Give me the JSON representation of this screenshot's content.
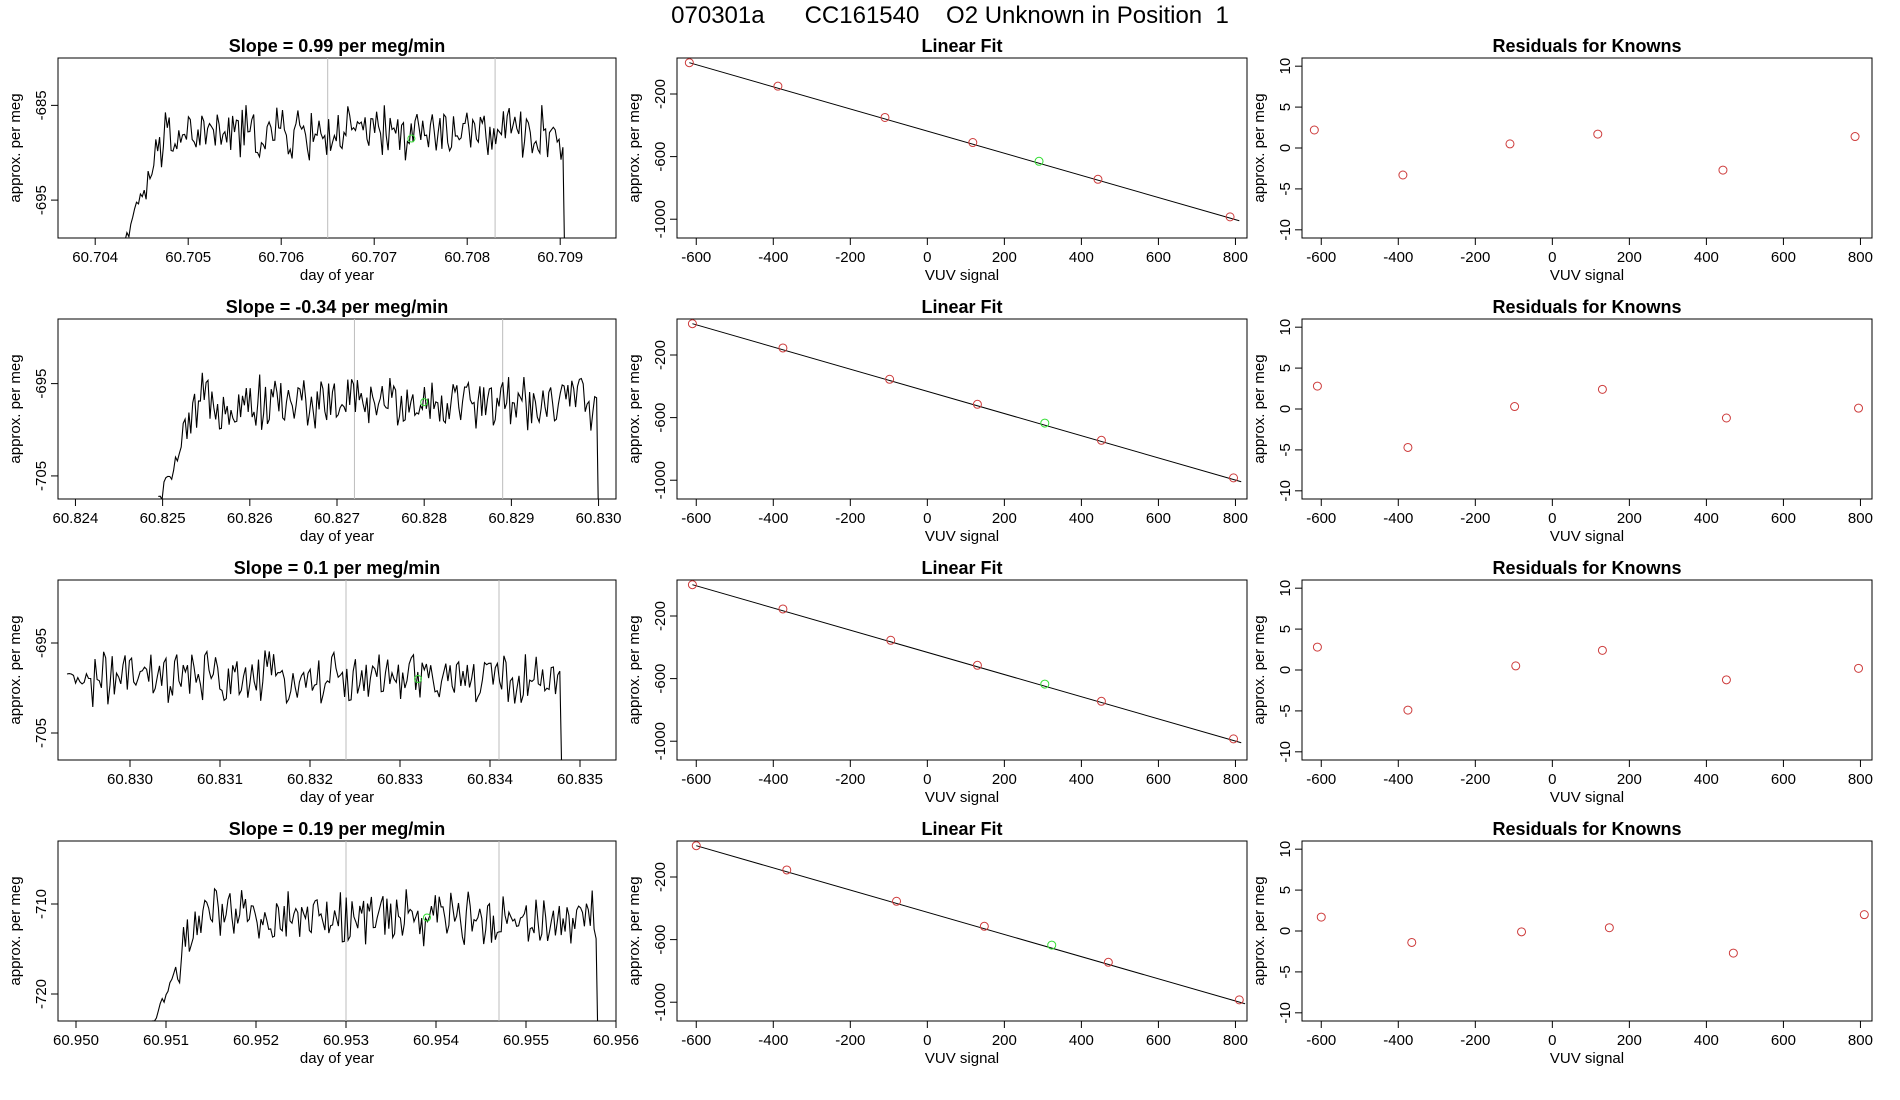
{
  "figure_title": "070301a      CC161540    O2 Unknown in Position  1",
  "colors": {
    "line": "#000000",
    "known_point": "#cd3b3b",
    "unknown_point": "#33dd33",
    "marker_line": "#bdbdbd"
  },
  "chart_data": [
    {
      "type": "line",
      "panel": "time-series",
      "row": 1,
      "title": "Slope =  0.99  per meg/min",
      "xlabel": "day of year",
      "ylabel": "approx. per meg",
      "xlim": [
        60.7036,
        60.7096
      ],
      "ylim": [
        -699,
        -680
      ],
      "xticks": [
        "60.704",
        "60.705",
        "60.706",
        "60.707",
        "60.708",
        "60.709"
      ],
      "xtick_values": [
        60.704,
        60.705,
        60.706,
        60.707,
        60.708,
        60.709
      ],
      "yticks": [
        "-685",
        "-695"
      ],
      "ytick_values": [
        -685,
        -695
      ],
      "x_start": 60.7043,
      "x_end": 60.70905,
      "level": -688.0,
      "ramp_from": -699.5,
      "vlines": [
        60.7065,
        60.7083
      ],
      "unknown_point": [
        60.7074,
        -688.5
      ]
    },
    {
      "type": "line",
      "panel": "time-series",
      "row": 2,
      "title": "Slope =  -0.34  per meg/min",
      "xlabel": "day of year",
      "ylabel": "approx. per meg",
      "xlim": [
        60.8238,
        60.8302
      ],
      "ylim": [
        -707.5,
        -688
      ],
      "xticks": [
        "60.824",
        "60.825",
        "60.826",
        "60.827",
        "60.828",
        "60.829",
        "60.830"
      ],
      "xtick_values": [
        60.824,
        60.825,
        60.826,
        60.827,
        60.828,
        60.829,
        60.83
      ],
      "yticks": [
        "-695",
        "-705"
      ],
      "ytick_values": [
        -695,
        -705
      ],
      "x_start": 60.82495,
      "x_end": 60.83,
      "level": -697.0,
      "ramp_from": -707.8,
      "vlines": [
        60.8272,
        60.8289
      ],
      "unknown_point": [
        60.828,
        -697.0
      ]
    },
    {
      "type": "line",
      "panel": "time-series",
      "row": 3,
      "title": "Slope =  0.1  per meg/min",
      "xlabel": "day of year",
      "ylabel": "approx. per meg",
      "xlim": [
        60.8292,
        60.8354
      ],
      "ylim": [
        -708,
        -688
      ],
      "xticks": [
        "60.830",
        "60.831",
        "60.832",
        "60.833",
        "60.834",
        "60.835"
      ],
      "xtick_values": [
        60.83,
        60.831,
        60.832,
        60.833,
        60.834,
        60.835
      ],
      "yticks": [
        "-695",
        "-705"
      ],
      "ytick_values": [
        -695,
        -705
      ],
      "x_start": 60.8293,
      "x_end": 60.8348,
      "level": -699.0,
      "ramp_from": -699.0,
      "vlines": [
        60.8324,
        60.8341
      ],
      "unknown_point": [
        60.8332,
        -699.0
      ]
    },
    {
      "type": "line",
      "panel": "time-series",
      "row": 4,
      "title": "Slope =  0.19  per meg/min",
      "xlabel": "day of year",
      "ylabel": "approx. per meg",
      "xlim": [
        60.9498,
        60.956
      ],
      "ylim": [
        -723,
        -703
      ],
      "xticks": [
        "60.950",
        "60.951",
        "60.952",
        "60.953",
        "60.954",
        "60.955",
        "60.956"
      ],
      "xtick_values": [
        60.95,
        60.951,
        60.952,
        60.953,
        60.954,
        60.955,
        60.956
      ],
      "yticks": [
        "-710",
        "-720"
      ],
      "ytick_values": [
        -710,
        -720
      ],
      "x_start": 60.95085,
      "x_end": 60.9558,
      "level": -711.5,
      "ramp_from": -723.5,
      "vlines": [
        60.953,
        60.9547
      ],
      "unknown_point": [
        60.9539,
        -711.5
      ]
    },
    {
      "type": "scatter",
      "panel": "linear-fit",
      "row": 1,
      "title": "Linear Fit",
      "xlabel": "VUV signal",
      "ylabel": "approx. per meg",
      "xlim": [
        -650,
        830
      ],
      "ylim": [
        -1120,
        30
      ],
      "xticks": [
        "-600",
        "-400",
        "-200",
        "0",
        "200",
        "400",
        "600",
        "800"
      ],
      "yticks": [
        "-200",
        "-600",
        "-1000"
      ],
      "known_points": [
        [
          -618,
          0
        ],
        [
          -388,
          -150
        ],
        [
          -110,
          -350
        ],
        [
          118,
          -510
        ],
        [
          443,
          -745
        ],
        [
          786,
          -985
        ]
      ],
      "unknown_point": [
        290,
        -630
      ],
      "fit_line": [
        [
          -618,
          0
        ],
        [
          810,
          -1010
        ]
      ]
    },
    {
      "type": "scatter",
      "panel": "linear-fit",
      "row": 2,
      "title": "Linear Fit",
      "xlabel": "VUV signal",
      "ylabel": "approx. per meg",
      "xlim": [
        -650,
        830
      ],
      "ylim": [
        -1120,
        30
      ],
      "xticks": [
        "-600",
        "-400",
        "-200",
        "0",
        "200",
        "400",
        "600",
        "800"
      ],
      "yticks": [
        "-200",
        "-600",
        "-1000"
      ],
      "known_points": [
        [
          -610,
          0
        ],
        [
          -375,
          -155
        ],
        [
          -98,
          -355
        ],
        [
          130,
          -515
        ],
        [
          452,
          -745
        ],
        [
          795,
          -985
        ]
      ],
      "unknown_point": [
        305,
        -635
      ],
      "fit_line": [
        [
          -610,
          0
        ],
        [
          815,
          -1010
        ]
      ]
    },
    {
      "type": "scatter",
      "panel": "linear-fit",
      "row": 3,
      "title": "Linear Fit",
      "xlabel": "VUV signal",
      "ylabel": "approx. per meg",
      "xlim": [
        -650,
        830
      ],
      "ylim": [
        -1120,
        30
      ],
      "xticks": [
        "-600",
        "-400",
        "-200",
        "0",
        "200",
        "400",
        "600",
        "800"
      ],
      "yticks": [
        "-200",
        "-600",
        "-1000"
      ],
      "known_points": [
        [
          -610,
          0
        ],
        [
          -375,
          -155
        ],
        [
          -95,
          -355
        ],
        [
          130,
          -515
        ],
        [
          452,
          -745
        ],
        [
          795,
          -985
        ]
      ],
      "unknown_point": [
        305,
        -635
      ],
      "fit_line": [
        [
          -610,
          0
        ],
        [
          815,
          -1010
        ]
      ]
    },
    {
      "type": "scatter",
      "panel": "linear-fit",
      "row": 4,
      "title": "Linear Fit",
      "xlabel": "VUV signal",
      "ylabel": "approx. per meg",
      "xlim": [
        -650,
        830
      ],
      "ylim": [
        -1120,
        30
      ],
      "xticks": [
        "-600",
        "-400",
        "-200",
        "0",
        "200",
        "400",
        "600",
        "800"
      ],
      "yticks": [
        "-200",
        "-600",
        "-1000"
      ],
      "known_points": [
        [
          -600,
          0
        ],
        [
          -365,
          -155
        ],
        [
          -80,
          -355
        ],
        [
          148,
          -515
        ],
        [
          470,
          -745
        ],
        [
          810,
          -985
        ]
      ],
      "unknown_point": [
        323,
        -635
      ],
      "fit_line": [
        [
          -600,
          0
        ],
        [
          825,
          -1010
        ]
      ]
    },
    {
      "type": "scatter",
      "panel": "residuals",
      "row": 1,
      "title": "Residuals for Knowns",
      "xlabel": "VUV signal",
      "ylabel": "approx. per meg",
      "xlim": [
        -650,
        830
      ],
      "ylim": [
        -11,
        11
      ],
      "xticks": [
        "-600",
        "-400",
        "-200",
        "0",
        "200",
        "400",
        "600",
        "800"
      ],
      "yticks": [
        "10",
        "5",
        "0",
        "-5",
        "-10"
      ],
      "points": [
        [
          -618,
          2.2
        ],
        [
          -388,
          -3.3
        ],
        [
          -110,
          0.5
        ],
        [
          118,
          1.7
        ],
        [
          443,
          -2.7
        ],
        [
          786,
          1.4
        ]
      ]
    },
    {
      "type": "scatter",
      "panel": "residuals",
      "row": 2,
      "title": "Residuals for Knowns",
      "xlabel": "VUV signal",
      "ylabel": "approx. per meg",
      "xlim": [
        -650,
        830
      ],
      "ylim": [
        -11,
        11
      ],
      "xticks": [
        "-600",
        "-400",
        "-200",
        "0",
        "200",
        "400",
        "600",
        "800"
      ],
      "yticks": [
        "10",
        "5",
        "0",
        "-5",
        "-10"
      ],
      "points": [
        [
          -610,
          2.8
        ],
        [
          -375,
          -4.7
        ],
        [
          -98,
          0.3
        ],
        [
          130,
          2.4
        ],
        [
          452,
          -1.1
        ],
        [
          795,
          0.1
        ]
      ]
    },
    {
      "type": "scatter",
      "panel": "residuals",
      "row": 3,
      "title": "Residuals for Knowns",
      "xlabel": "VUV signal",
      "ylabel": "approx. per meg",
      "xlim": [
        -650,
        830
      ],
      "ylim": [
        -11,
        11
      ],
      "xticks": [
        "-600",
        "-400",
        "-200",
        "0",
        "200",
        "400",
        "600",
        "800"
      ],
      "yticks": [
        "10",
        "5",
        "0",
        "-5",
        "-10"
      ],
      "points": [
        [
          -610,
          2.8
        ],
        [
          -375,
          -4.9
        ],
        [
          -95,
          0.5
        ],
        [
          130,
          2.4
        ],
        [
          452,
          -1.2
        ],
        [
          795,
          0.2
        ]
      ]
    },
    {
      "type": "scatter",
      "panel": "residuals",
      "row": 4,
      "title": "Residuals for Knowns",
      "xlabel": "VUV signal",
      "ylabel": "approx. per meg",
      "xlim": [
        -650,
        830
      ],
      "ylim": [
        -11,
        11
      ],
      "xticks": [
        "-600",
        "-400",
        "-200",
        "0",
        "200",
        "400",
        "600",
        "800"
      ],
      "yticks": [
        "10",
        "5",
        "0",
        "-5",
        "-10"
      ],
      "points": [
        [
          -600,
          1.7
        ],
        [
          -365,
          -1.4
        ],
        [
          -80,
          -0.1
        ],
        [
          148,
          0.4
        ],
        [
          470,
          -2.7
        ],
        [
          810,
          2.0
        ]
      ]
    }
  ]
}
